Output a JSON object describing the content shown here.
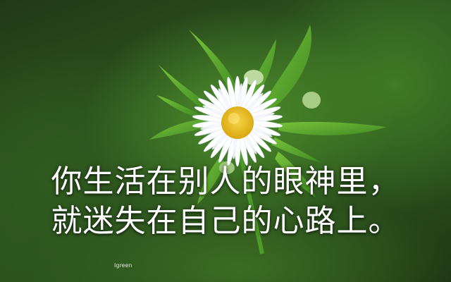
{
  "caption": {
    "line1": "你生活在别人的眼神里，",
    "line2": "就迷失在自己的心路上。"
  },
  "watermark": "Igreen",
  "colors": {
    "background": "#2d5420",
    "leaf": "#5fae2e",
    "petal": "#ffffff",
    "flower_center": "#f0c419",
    "text": "#ffffff"
  }
}
